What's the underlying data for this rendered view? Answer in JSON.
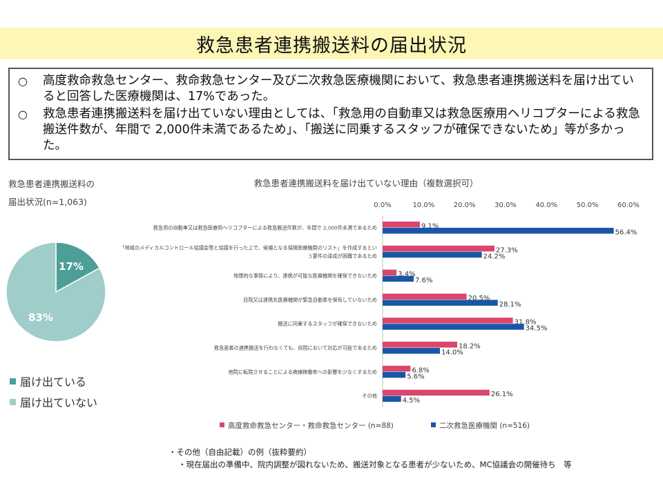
{
  "title": "救急患者連携搬送料の届出状況",
  "summary": [
    {
      "bullet": "○",
      "text": "高度救命救急センター、救命救急センター及び二次救急医療機関において、救急患者連携搬送料を届け出ていると回答した医療機関は、17%であった。"
    },
    {
      "bullet": "○",
      "text": "救急患者連携搬送料を届け出ていない理由としては、「救急用の自動車又は救急医療用ヘリコプターによる救急搬送件数が、年間で 2,000件未満であるため」、「搬送に同乗するスタッフが確保できないため」等が多かった。"
    }
  ],
  "colors": {
    "pie_filed": "#4e9e98",
    "pie_not_filed": "#9ecdca",
    "series_advanced": "#d9466e",
    "series_secondary": "#1a56a8",
    "title_bg": "#fdf6b5"
  },
  "chart_data": [
    {
      "type": "pie",
      "title_lines": [
        "救急患者連携搬送料の",
        "届出状況(n=1,063)"
      ],
      "labels": [
        "届け出ている",
        "届け出ていない"
      ],
      "values": [
        17,
        83
      ],
      "value_labels": [
        "17%",
        "83%"
      ],
      "legend_position": "bottom"
    },
    {
      "type": "bar",
      "orientation": "horizontal",
      "title": "救急患者連携搬送料を届け出ていない理由（複数選択可）",
      "xlim": [
        0,
        60
      ],
      "tick_labels": [
        "0.0%",
        "10.0%",
        "20.0%",
        "30.0%",
        "40.0%",
        "50.0%",
        "60.0%"
      ],
      "categories": [
        [
          "救急用の自動車又は救急医療用ヘリコプターによる救急搬送件数が、年間で 2,000件未満であるため"
        ],
        [
          "「地域のメディカルコントロール協議会等と協議を行った上で、候補となる保険医療機関のリスト」を作成するとい",
          "う要件の達成が困難であるため"
        ],
        [
          "地理的な事情により、連携が可能な医療機関を確保できないため"
        ],
        [
          "自院又は連携先医療機関が緊急自動車を保有していないため"
        ],
        [
          "搬送に同乗するスタッフが確保できないため"
        ],
        [
          "救急患者の連携搬送を行わなくても、自院において対応が可能であるため"
        ],
        [
          "他院に転院させることによる病棟稼働率への影響を少なくするため"
        ],
        [
          "その他"
        ]
      ],
      "series": [
        {
          "name": "高度救命救急センター・救命救急センター (n=88)",
          "values": [
            9.1,
            27.3,
            3.4,
            20.5,
            31.8,
            18.2,
            6.8,
            26.1
          ],
          "labels": [
            "9.1%",
            "27.3%",
            "3.4%",
            "20.5%",
            "31.8%",
            "18.2%",
            "6.8%",
            "26.1%"
          ]
        },
        {
          "name": "二次救急医療機関 (n=516)",
          "values": [
            56.4,
            24.2,
            7.6,
            28.1,
            34.5,
            14.0,
            5.6,
            4.5
          ],
          "labels": [
            "56.4%",
            "24.2%",
            "7.6%",
            "28.1%",
            "34.5%",
            "14.0%",
            "5.6%",
            "4.5%"
          ]
        }
      ],
      "legend_position": "bottom"
    }
  ],
  "notes": [
    "・その他（自由記載）の例（抜粋要約）",
    "・現在届出の準備中、院内調整が図れないため、搬送対象となる患者が少ないため、MC協議会の開催待ち　等"
  ]
}
